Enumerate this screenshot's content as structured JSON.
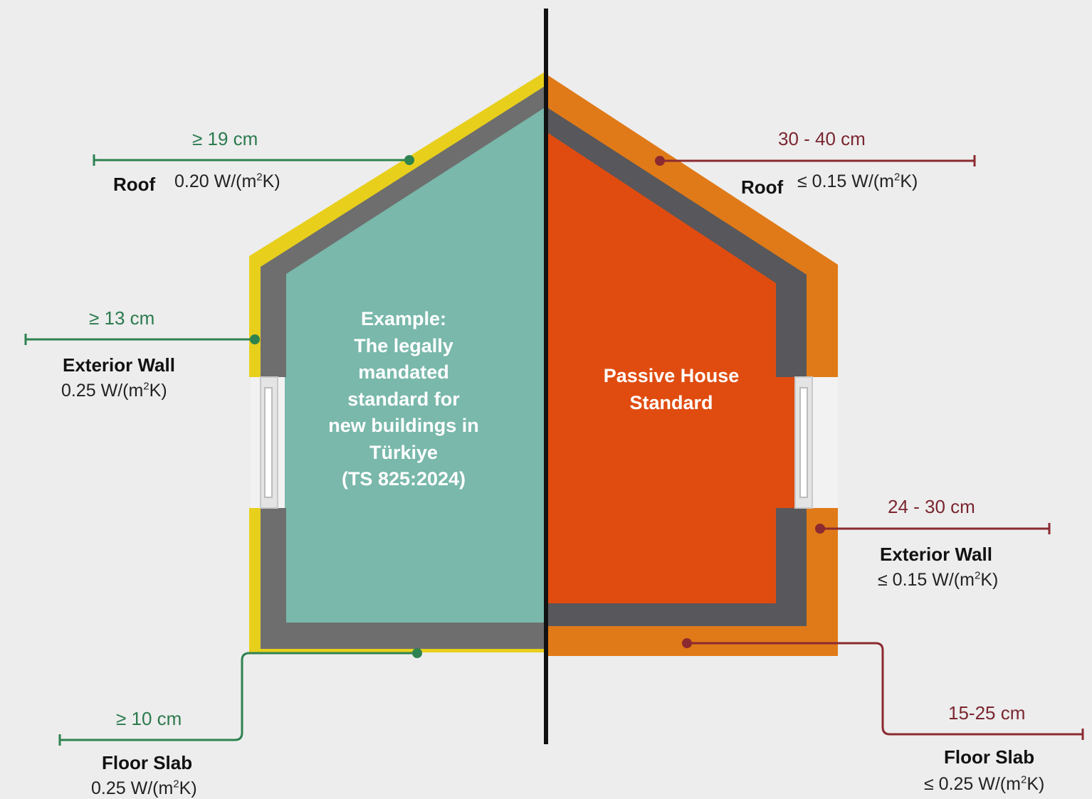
{
  "colors": {
    "background": "#ededed",
    "left_outer": "#e8cf1c",
    "left_core": "#6e6e6e",
    "left_fill": "#79b8ab",
    "right_outer": "#e07a18",
    "right_core": "#58575b",
    "right_fill": "#e04c10",
    "green_line": "#2e8350",
    "red_line": "#8b2a30",
    "divider": "#111111"
  },
  "left": {
    "title_lines": [
      "Example:",
      "The legally",
      "mandated",
      "standard for",
      "new buildings in",
      "Türkiye",
      "(TS 825:2024)"
    ],
    "roof": {
      "dimension": "≥ 19 cm",
      "label": "Roof",
      "u_prefix": "0.20 W/(m",
      "u_sup": "2",
      "u_suffix": "K)"
    },
    "wall": {
      "dimension": "≥ 13 cm",
      "label": "Exterior Wall",
      "u_prefix": "0.25 W/(m",
      "u_sup": "2",
      "u_suffix": "K)"
    },
    "floor": {
      "dimension": "≥ 10 cm",
      "label": "Floor Slab",
      "u_prefix": "0.25 W/(m",
      "u_sup": "2",
      "u_suffix": "K)"
    }
  },
  "right": {
    "title_lines": [
      "Passive House",
      "Standard"
    ],
    "roof": {
      "dimension": "30 - 40 cm",
      "label": "Roof",
      "u_prefix": "≤ 0.15 W/(m",
      "u_sup": "2",
      "u_suffix": "K)"
    },
    "wall": {
      "dimension": "24 - 30 cm",
      "label": "Exterior Wall",
      "u_prefix": "≤ 0.15 W/(m",
      "u_sup": "2",
      "u_suffix": "K)"
    },
    "floor": {
      "dimension": "15-25 cm",
      "label": "Floor Slab",
      "u_prefix": "≤ 0.25 W/(m",
      "u_sup": "2",
      "u_suffix": "K)"
    }
  }
}
